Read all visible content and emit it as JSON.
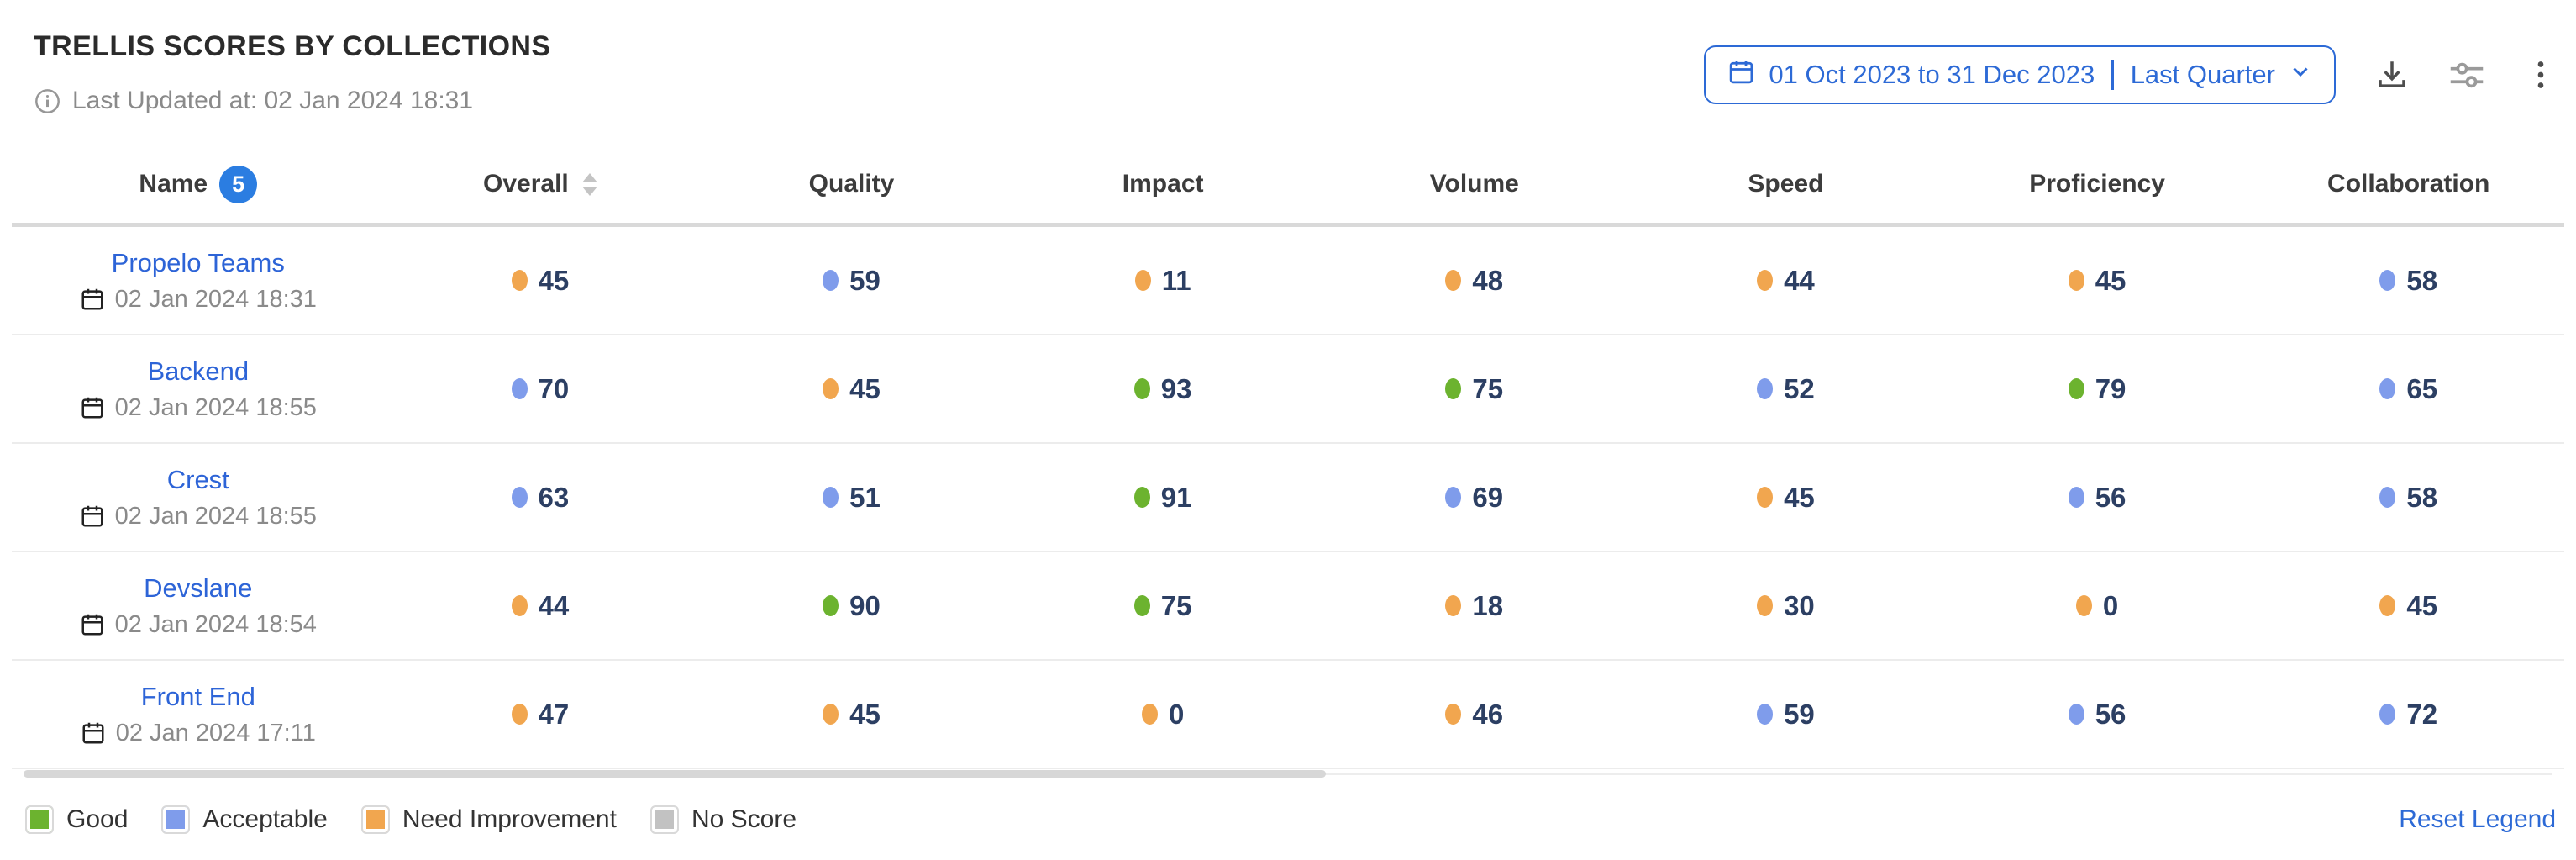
{
  "colors": {
    "accent_blue": "#2d6ad6",
    "link_blue": "#2d64d7",
    "badge_blue": "#2b7de1",
    "good_green": "#6cb32f",
    "acceptable_blue": "#7f9ceb",
    "need_improvement_orange": "#f1a64f",
    "no_score_gray": "#c2c2c2",
    "score_text": "#2c3f63"
  },
  "header": {
    "title": "TRELLIS SCORES BY COLLECTIONS",
    "last_updated": "Last Updated at: 02 Jan 2024 18:31",
    "info_icon": "info-circle-icon",
    "date_range": {
      "calendar_icon": "calendar-icon",
      "range_text": "01 Oct 2023 to 31 Dec 2023",
      "preset_label": "Last Quarter",
      "chevron_icon": "chevron-down-icon"
    },
    "actions": {
      "download_icon": "download-icon",
      "settings_icon": "sliders-icon",
      "more_icon": "vertical-ellipsis-icon"
    }
  },
  "table": {
    "columns": [
      "Name",
      "Overall",
      "Quality",
      "Impact",
      "Volume",
      "Speed",
      "Proficiency",
      "Collaboration"
    ],
    "name_badge_count": "5",
    "sortable_column": "Overall",
    "rows": [
      {
        "name": "Propelo Teams",
        "updated": "02 Jan 2024 18:31",
        "scores": [
          {
            "value": 45,
            "level": "need_improvement"
          },
          {
            "value": 59,
            "level": "acceptable"
          },
          {
            "value": 11,
            "level": "need_improvement"
          },
          {
            "value": 48,
            "level": "need_improvement"
          },
          {
            "value": 44,
            "level": "need_improvement"
          },
          {
            "value": 45,
            "level": "need_improvement"
          },
          {
            "value": 58,
            "level": "acceptable"
          }
        ]
      },
      {
        "name": "Backend",
        "updated": "02 Jan 2024 18:55",
        "scores": [
          {
            "value": 70,
            "level": "acceptable"
          },
          {
            "value": 45,
            "level": "need_improvement"
          },
          {
            "value": 93,
            "level": "good"
          },
          {
            "value": 75,
            "level": "good"
          },
          {
            "value": 52,
            "level": "acceptable"
          },
          {
            "value": 79,
            "level": "good"
          },
          {
            "value": 65,
            "level": "acceptable"
          }
        ]
      },
      {
        "name": "Crest",
        "updated": "02 Jan 2024 18:55",
        "scores": [
          {
            "value": 63,
            "level": "acceptable"
          },
          {
            "value": 51,
            "level": "acceptable"
          },
          {
            "value": 91,
            "level": "good"
          },
          {
            "value": 69,
            "level": "acceptable"
          },
          {
            "value": 45,
            "level": "need_improvement"
          },
          {
            "value": 56,
            "level": "acceptable"
          },
          {
            "value": 58,
            "level": "acceptable"
          }
        ]
      },
      {
        "name": "Devslane",
        "updated": "02 Jan 2024 18:54",
        "scores": [
          {
            "value": 44,
            "level": "need_improvement"
          },
          {
            "value": 90,
            "level": "good"
          },
          {
            "value": 75,
            "level": "good"
          },
          {
            "value": 18,
            "level": "need_improvement"
          },
          {
            "value": 30,
            "level": "need_improvement"
          },
          {
            "value": 0,
            "level": "need_improvement"
          },
          {
            "value": 45,
            "level": "need_improvement"
          }
        ]
      },
      {
        "name": "Front End",
        "updated": "02 Jan 2024 17:11",
        "scores": [
          {
            "value": 47,
            "level": "need_improvement"
          },
          {
            "value": 45,
            "level": "need_improvement"
          },
          {
            "value": 0,
            "level": "need_improvement"
          },
          {
            "value": 46,
            "level": "need_improvement"
          },
          {
            "value": 59,
            "level": "acceptable"
          },
          {
            "value": 56,
            "level": "acceptable"
          },
          {
            "value": 72,
            "level": "acceptable"
          }
        ]
      }
    ]
  },
  "legend": {
    "items": [
      {
        "label": "Good",
        "level": "good"
      },
      {
        "label": "Acceptable",
        "level": "acceptable"
      },
      {
        "label": "Need Improvement",
        "level": "need_improvement"
      },
      {
        "label": "No Score",
        "level": "no_score"
      }
    ],
    "reset_label": "Reset Legend"
  }
}
